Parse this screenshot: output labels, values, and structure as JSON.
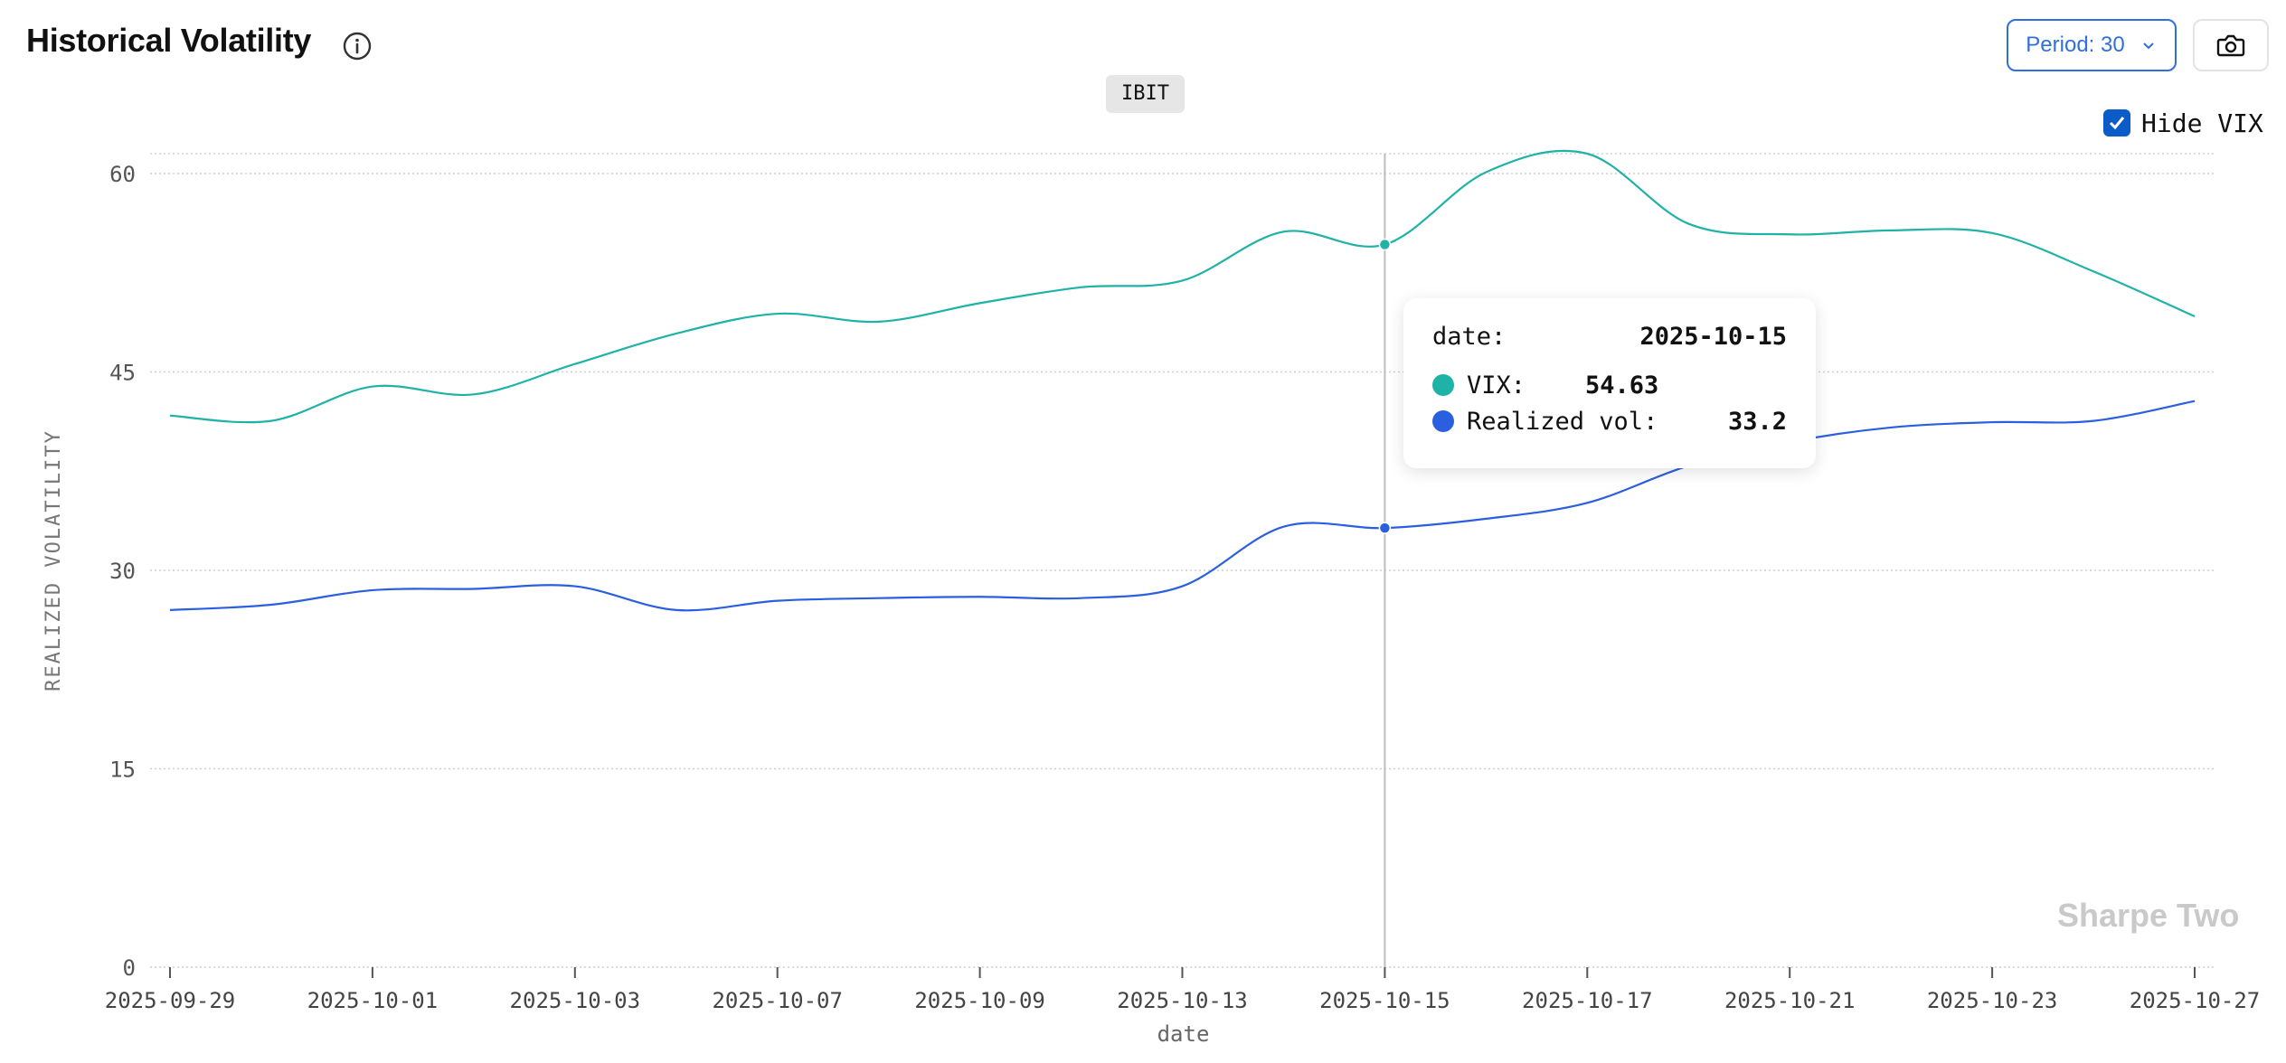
{
  "header": {
    "title": "Historical Volatility",
    "info_icon": "info-icon",
    "period_label": "Period: 30",
    "camera_icon": "camera-icon"
  },
  "ticker": "IBIT",
  "hide_vix": {
    "label": "Hide VIX",
    "checked": true
  },
  "watermark": "Sharpe Two",
  "tooltip": {
    "date_label": "date:",
    "date_value": "2025-10-15",
    "vix_label": "VIX:",
    "vix_value": "54.63",
    "rv_label": "Realized vol:",
    "rv_value": "33.2"
  },
  "colors": {
    "vix": "#1fb2a6",
    "realized": "#2a5fe0",
    "accent": "#2f6fde"
  },
  "chart_data": {
    "type": "line",
    "xlabel": "date",
    "ylabel": "REALIZED VOLATILITY",
    "ylim": [
      0,
      61.5
    ],
    "yticks": [
      0,
      15,
      30,
      45,
      60
    ],
    "x": [
      "2025-09-29",
      "2025-09-30",
      "2025-10-01",
      "2025-10-02",
      "2025-10-03",
      "2025-10-06",
      "2025-10-07",
      "2025-10-08",
      "2025-10-09",
      "2025-10-10",
      "2025-10-13",
      "2025-10-14",
      "2025-10-15",
      "2025-10-16",
      "2025-10-17",
      "2025-10-20",
      "2025-10-21",
      "2025-10-22",
      "2025-10-23",
      "2025-10-24",
      "2025-10-27"
    ],
    "xticks": [
      "2025-09-29",
      "2025-10-01",
      "2025-10-03",
      "2025-10-07",
      "2025-10-09",
      "2025-10-13",
      "2025-10-15",
      "2025-10-17",
      "2025-10-21",
      "2025-10-23",
      "2025-10-27"
    ],
    "series": [
      {
        "name": "VIX",
        "values": [
          41.7,
          41.3,
          43.9,
          43.3,
          45.6,
          47.9,
          49.4,
          48.8,
          50.2,
          51.4,
          51.9,
          55.6,
          54.63,
          60.1,
          61.5,
          56.2,
          55.4,
          55.7,
          55.5,
          52.6,
          49.2
        ]
      },
      {
        "name": "Realized vol",
        "values": [
          27.0,
          27.4,
          28.5,
          28.6,
          28.8,
          27.0,
          27.7,
          27.9,
          28.0,
          27.9,
          28.8,
          33.3,
          33.2,
          33.9,
          35.1,
          37.9,
          39.7,
          40.8,
          41.2,
          41.3,
          42.8
        ]
      }
    ],
    "highlight_index": 12,
    "grid": true
  }
}
